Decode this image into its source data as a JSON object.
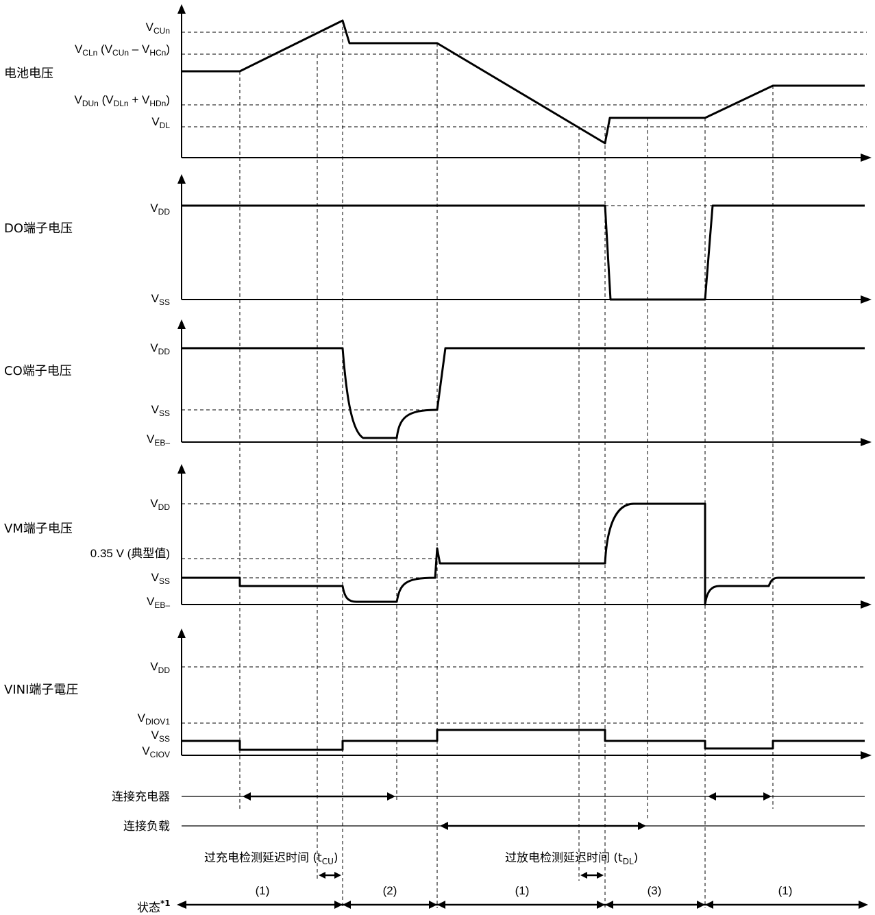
{
  "panels": {
    "battery": {
      "title": "电池电压",
      "ticks": [
        {
          "main": "V",
          "sub": "CUn",
          "rest": ""
        },
        {
          "main": "V",
          "sub": "CLn",
          "rest": " (V",
          "sub2": "CUn",
          "rest2": " – V",
          "sub3": "HCn",
          "rest3": ")"
        },
        {
          "main": "V",
          "sub": "DUn",
          "rest": " (V",
          "sub2": "DLn",
          "rest2": " + V",
          "sub3": "HDn",
          "rest3": ")"
        },
        {
          "main": "V",
          "sub": "DL",
          "rest": ""
        }
      ]
    },
    "do": {
      "title": "DO端子电压",
      "vdd": "DD",
      "vss": "SS"
    },
    "co": {
      "title": "CO端子电压",
      "vdd": "DD",
      "vss": "SS",
      "veb": "EB–"
    },
    "vm": {
      "title": "VM端子电压",
      "vdd": "DD",
      "typ": "0.35 V (典型值)",
      "vss": "SS",
      "veb": "EB–"
    },
    "vini": {
      "title": "VINI端子電圧",
      "vdd": "DD",
      "vdiov": "DIOV1",
      "vss": "SS",
      "vciov": "CIOV"
    }
  },
  "rows": {
    "charger": "连接充电器",
    "load": "连接负载",
    "overcharge_delay": "过充电检测延迟时间  (t",
    "overcharge_delay_sub": "CU",
    "overdischarge_delay": "过放电检测延迟时间  (t",
    "overdischarge_delay_sub": "DL",
    "state_label": "状态",
    "state_note": "*1",
    "states": [
      "(1)",
      "(2)",
      "(1)",
      "(3)",
      "(1)"
    ]
  },
  "symbol_prefix": "V",
  "paren_close": ")"
}
